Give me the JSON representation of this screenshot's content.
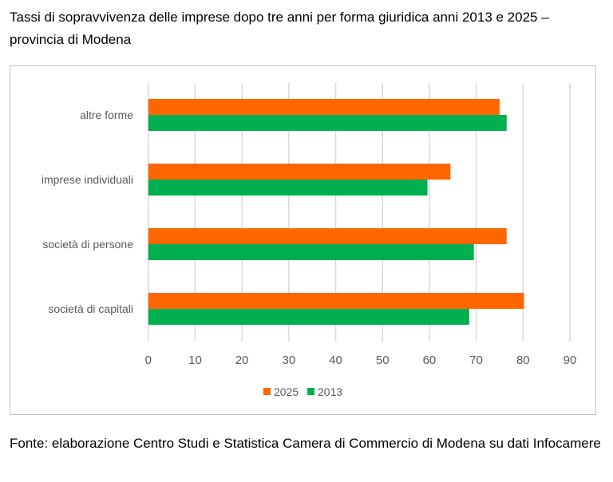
{
  "title": "Tassi di sopravvivenza delle imprese dopo tre anni per forma giuridica anni 2013 e 2025 – provincia di Modena",
  "source": "Fonte: elaborazione Centro Studi e Statistica Camera di Commercio di Modena su dati Infocamere",
  "chart_data": {
    "type": "bar",
    "orientation": "horizontal",
    "categories": [
      "altre forme",
      "imprese individuali",
      "società di persone",
      "società di capitali"
    ],
    "series": [
      {
        "name": "2025",
        "color": "#FF6600",
        "values": [
          75.0,
          64.5,
          76.5,
          80.2
        ]
      },
      {
        "name": "2013",
        "color": "#00B050",
        "values": [
          76.5,
          59.6,
          69.5,
          68.5
        ]
      }
    ],
    "xlim": [
      0,
      90
    ],
    "xticks": [
      "0",
      "10",
      "20",
      "30",
      "40",
      "50",
      "60",
      "70",
      "80",
      "90"
    ],
    "grid": true,
    "legend": "bottom"
  }
}
